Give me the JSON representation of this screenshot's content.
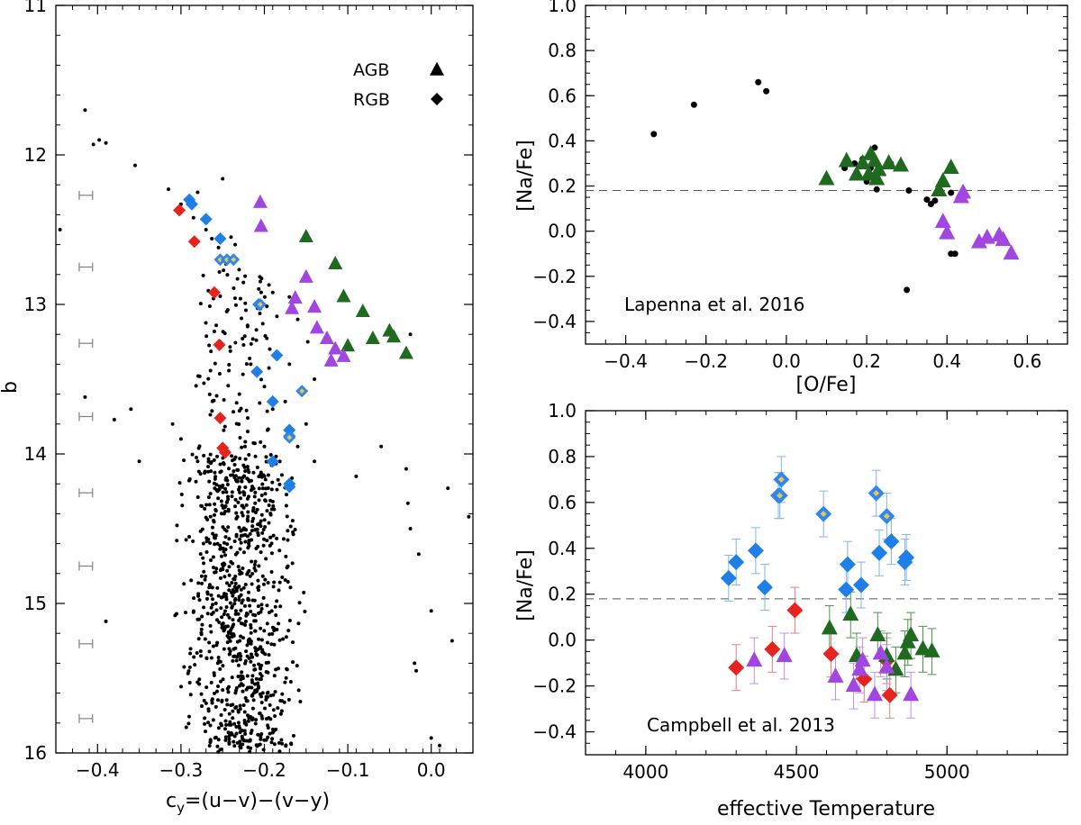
{
  "chart_data": [
    {
      "id": "cmd",
      "type": "scatter",
      "xlabel": "c_y=(u-v)-(v-y)",
      "xlabel_main": "c",
      "xlabel_sub": "y",
      "xlabel_rest": "=(u−v)−(v−y)",
      "ylabel": "b",
      "xlim": [
        -0.45,
        0.05
      ],
      "ylim": [
        16,
        11
      ],
      "x_ticks": [
        -0.4,
        -0.3,
        -0.2,
        -0.1,
        0.0
      ],
      "x_tick_labels": [
        "−0.4",
        "−0.3",
        "−0.2",
        "−0.1",
        "0.0"
      ],
      "y_ticks": [
        11,
        12,
        13,
        14,
        15,
        16
      ],
      "y_tick_labels": [
        "11",
        "12",
        "13",
        "14",
        "15",
        "16"
      ],
      "legend": [
        {
          "label": "AGB",
          "marker": "triangle"
        },
        {
          "label": "RGB",
          "marker": "diamond"
        }
      ],
      "error_bars": {
        "x": -0.414,
        "half_width": 0.008,
        "y": [
          12.27,
          12.75,
          13.26,
          13.75,
          14.26,
          14.75,
          15.27,
          15.77
        ]
      },
      "field_stars": [
        [
          -0.415,
          11.7
        ],
        [
          -0.405,
          11.93
        ],
        [
          -0.398,
          11.9
        ],
        [
          -0.39,
          11.92
        ],
        [
          -0.355,
          12.07
        ],
        [
          -0.315,
          12.23
        ],
        [
          -0.28,
          12.25
        ],
        [
          -0.25,
          12.16
        ],
        [
          -0.3,
          12.33
        ],
        [
          -0.285,
          12.42
        ],
        [
          -0.27,
          12.5
        ],
        [
          -0.263,
          12.56
        ],
        [
          -0.255,
          12.62
        ],
        [
          -0.246,
          12.73
        ],
        [
          -0.24,
          12.55
        ],
        [
          -0.235,
          12.6
        ],
        [
          -0.445,
          12.5
        ],
        [
          -0.21,
          13.0
        ],
        [
          -0.19,
          12.92
        ],
        [
          -0.185,
          13.08
        ],
        [
          -0.17,
          12.95
        ],
        [
          -0.16,
          13.1
        ],
        [
          -0.148,
          13.25
        ],
        [
          -0.1,
          13.3
        ],
        [
          -0.025,
          13.2
        ],
        [
          -0.415,
          13.62
        ],
        [
          -0.38,
          13.77
        ],
        [
          -0.36,
          13.7
        ],
        [
          -0.31,
          13.8
        ],
        [
          -0.3,
          13.9
        ],
        [
          -0.28,
          14.05
        ],
        [
          -0.35,
          14.05
        ],
        [
          -0.15,
          13.8
        ],
        [
          -0.14,
          14.05
        ],
        [
          -0.09,
          14.15
        ],
        [
          -0.06,
          13.95
        ],
        [
          -0.028,
          14.33
        ],
        [
          -0.025,
          14.5
        ],
        [
          -0.015,
          14.67
        ],
        [
          -0.03,
          14.1
        ],
        [
          0.02,
          14.23
        ],
        [
          0.045,
          14.42
        ],
        [
          -0.305,
          14.58
        ],
        [
          -0.39,
          15.12
        ],
        [
          -0.02,
          15.4
        ],
        [
          -0.018,
          15.45
        ],
        [
          0.0,
          15.05
        ],
        [
          0.025,
          15.25
        ],
        [
          0.0,
          15.9
        ],
        [
          0.01,
          15.95
        ],
        [
          -0.21,
          13.45
        ],
        [
          -0.23,
          13.6
        ],
        [
          -0.2,
          13.55
        ],
        [
          -0.17,
          13.4
        ],
        [
          -0.19,
          13.7
        ],
        [
          -0.175,
          13.65
        ],
        [
          -0.14,
          13.5
        ],
        [
          -0.22,
          13.85
        ],
        [
          -0.2,
          13.95
        ],
        [
          -0.16,
          13.95
        ]
      ],
      "rgb_normal": [
        [
          -0.29,
          12.3
        ],
        [
          -0.287,
          12.33
        ],
        [
          -0.27,
          12.43
        ],
        [
          -0.253,
          12.56
        ],
        [
          -0.207,
          13.0
        ],
        [
          -0.185,
          13.34
        ],
        [
          -0.209,
          13.45
        ],
        [
          -0.19,
          13.65
        ],
        [
          -0.17,
          13.84
        ],
        [
          -0.17,
          13.88
        ],
        [
          -0.19,
          14.05
        ],
        [
          -0.17,
          14.2
        ],
        [
          -0.17,
          14.22
        ]
      ],
      "rgb_highna": [
        [
          -0.253,
          12.7
        ],
        [
          -0.245,
          12.7
        ],
        [
          -0.237,
          12.7
        ],
        [
          -0.205,
          13.0
        ],
        [
          -0.155,
          13.58
        ],
        [
          -0.17,
          13.89
        ]
      ],
      "rgb_lowna": [
        [
          -0.302,
          12.37
        ],
        [
          -0.284,
          12.58
        ],
        [
          -0.26,
          12.92
        ],
        [
          -0.254,
          13.27
        ],
        [
          -0.253,
          13.76
        ],
        [
          -0.25,
          13.96
        ],
        [
          -0.247,
          13.99
        ]
      ],
      "agb_highna": [
        [
          -0.205,
          12.32
        ],
        [
          -0.204,
          12.48
        ],
        [
          -0.15,
          12.82
        ],
        [
          -0.163,
          12.96
        ],
        [
          -0.14,
          13.02
        ],
        [
          -0.167,
          13.03
        ],
        [
          -0.137,
          13.16
        ],
        [
          -0.125,
          13.23
        ],
        [
          -0.115,
          13.3
        ],
        [
          -0.12,
          13.38
        ],
        [
          -0.105,
          13.35
        ]
      ],
      "agb_lowna": [
        [
          -0.15,
          12.55
        ],
        [
          -0.115,
          12.73
        ],
        [
          -0.105,
          12.95
        ],
        [
          -0.082,
          13.05
        ],
        [
          -0.07,
          13.23
        ],
        [
          -0.1,
          13.28
        ],
        [
          -0.05,
          13.18
        ],
        [
          -0.045,
          13.22
        ],
        [
          -0.03,
          13.33
        ]
      ]
    },
    {
      "id": "na-o",
      "type": "scatter",
      "xlabel": "[O/Fe]",
      "ylabel": "[Na/Fe]",
      "xlim": [
        -0.5,
        0.7
      ],
      "ylim": [
        -0.5,
        1.0
      ],
      "x_ticks": [
        -0.4,
        -0.2,
        0.0,
        0.2,
        0.4,
        0.6
      ],
      "x_tick_labels": [
        "−0.4",
        "−0.2",
        "0.0",
        "0.2",
        "0.4",
        "0.6"
      ],
      "y_ticks": [
        -0.4,
        -0.2,
        0.0,
        0.2,
        0.4,
        0.6,
        0.8,
        1.0
      ],
      "y_tick_labels": [
        "−0.4",
        "−0.2",
        "0.0",
        "0.2",
        "0.4",
        "0.6",
        "0.8",
        "1.0"
      ],
      "reference_line": 0.18,
      "annotation": "Lapenna et al. 2016",
      "field_stars": [
        [
          -0.33,
          0.43
        ],
        [
          -0.23,
          0.56
        ],
        [
          -0.07,
          0.66
        ],
        [
          -0.05,
          0.62
        ],
        [
          0.145,
          0.28
        ],
        [
          0.17,
          0.3
        ],
        [
          0.19,
          0.32
        ],
        [
          0.2,
          0.22
        ],
        [
          0.21,
          0.28
        ],
        [
          0.215,
          0.33
        ],
        [
          0.22,
          0.37
        ],
        [
          0.225,
          0.185
        ],
        [
          0.23,
          0.26
        ],
        [
          0.26,
          0.3
        ],
        [
          0.305,
          0.18
        ],
        [
          0.3,
          -0.26
        ],
        [
          0.35,
          0.14
        ],
        [
          0.36,
          0.12
        ],
        [
          0.37,
          0.135
        ],
        [
          0.41,
          -0.1
        ],
        [
          0.42,
          -0.1
        ],
        [
          0.41,
          0.17
        ]
      ],
      "agb_lowna": [
        [
          0.1,
          0.23
        ],
        [
          0.15,
          0.31
        ],
        [
          0.175,
          0.25
        ],
        [
          0.19,
          0.3
        ],
        [
          0.205,
          0.25
        ],
        [
          0.21,
          0.34
        ],
        [
          0.22,
          0.31
        ],
        [
          0.225,
          0.23
        ],
        [
          0.23,
          0.27
        ],
        [
          0.255,
          0.3
        ],
        [
          0.285,
          0.29
        ],
        [
          0.38,
          0.18
        ],
        [
          0.39,
          0.22
        ],
        [
          0.41,
          0.28
        ]
      ],
      "agb_highna": [
        [
          0.39,
          0.04
        ],
        [
          0.4,
          -0.01
        ],
        [
          0.435,
          0.15
        ],
        [
          0.44,
          0.17
        ],
        [
          0.48,
          -0.05
        ],
        [
          0.5,
          -0.03
        ],
        [
          0.53,
          -0.02
        ],
        [
          0.54,
          -0.04
        ],
        [
          0.56,
          -0.1
        ]
      ]
    },
    {
      "id": "na-teff",
      "type": "scatter",
      "xlabel": "effective Temperature",
      "ylabel": "[Na/Fe]",
      "xlim": [
        3800,
        5400
      ],
      "ylim": [
        -0.5,
        1.0
      ],
      "x_ticks": [
        4000,
        4500,
        5000
      ],
      "x_tick_labels": [
        "4000",
        "4500",
        "5000"
      ],
      "y_ticks": [
        -0.4,
        -0.2,
        0.0,
        0.2,
        0.4,
        0.6,
        0.8,
        1.0
      ],
      "y_tick_labels": [
        "−0.4",
        "−0.2",
        "0.0",
        "0.2",
        "0.4",
        "0.6",
        "0.8",
        "1.0"
      ],
      "reference_line": 0.18,
      "annotation": "Campbell et al. 2013",
      "error": 0.1,
      "rgb_normal": [
        [
          4275,
          0.27
        ],
        [
          4300,
          0.34
        ],
        [
          4365,
          0.39
        ],
        [
          4395,
          0.23
        ],
        [
          4665,
          0.22
        ],
        [
          4670,
          0.33
        ],
        [
          4715,
          0.24
        ],
        [
          4775,
          0.38
        ],
        [
          4815,
          0.43
        ],
        [
          4860,
          0.34
        ],
        [
          4865,
          0.36
        ]
      ],
      "rgb_highna": [
        [
          4440,
          0.63
        ],
        [
          4445,
          0.63
        ],
        [
          4450,
          0.7
        ],
        [
          4590,
          0.55
        ],
        [
          4765,
          0.64
        ],
        [
          4800,
          0.54
        ]
      ],
      "rgb_lowna": [
        [
          4300,
          -0.12
        ],
        [
          4420,
          -0.04
        ],
        [
          4495,
          0.13
        ],
        [
          4615,
          -0.06
        ],
        [
          4725,
          -0.17
        ],
        [
          4800,
          -0.09
        ],
        [
          4810,
          -0.24
        ]
      ],
      "agb_lowna": [
        [
          4610,
          0.05
        ],
        [
          4680,
          0.11
        ],
        [
          4700,
          -0.07
        ],
        [
          4770,
          0.02
        ],
        [
          4800,
          -0.07
        ],
        [
          4830,
          -0.13
        ],
        [
          4860,
          -0.06
        ],
        [
          4870,
          -0.01
        ],
        [
          4880,
          0.02
        ],
        [
          4920,
          -0.04
        ],
        [
          4950,
          -0.05
        ]
      ],
      "agb_highna": [
        [
          4360,
          -0.09
        ],
        [
          4460,
          -0.07
        ],
        [
          4630,
          -0.16
        ],
        [
          4690,
          -0.2
        ],
        [
          4710,
          -0.13
        ],
        [
          4720,
          -0.09
        ],
        [
          4760,
          -0.24
        ],
        [
          4780,
          -0.06
        ],
        [
          4800,
          -0.12
        ],
        [
          4880,
          -0.24
        ]
      ]
    }
  ],
  "colors": {
    "field": "#000000",
    "rgb_normal": "#1f7fe6",
    "rgb_highna_fill": "#2f86ee",
    "rgb_highna_center": "#e7c74a",
    "rgb_lowna": "#e6241f",
    "agb_lowna": "#1f6a1f",
    "agb_highna": "#a146e0",
    "error_rgb": "#7fb4ee",
    "error_lowna": "#e67e7e",
    "error_agb_low": "#4a944a",
    "error_agb_high": "#c38ef0",
    "errbar_gray": "#808080",
    "refline": "#555555"
  }
}
